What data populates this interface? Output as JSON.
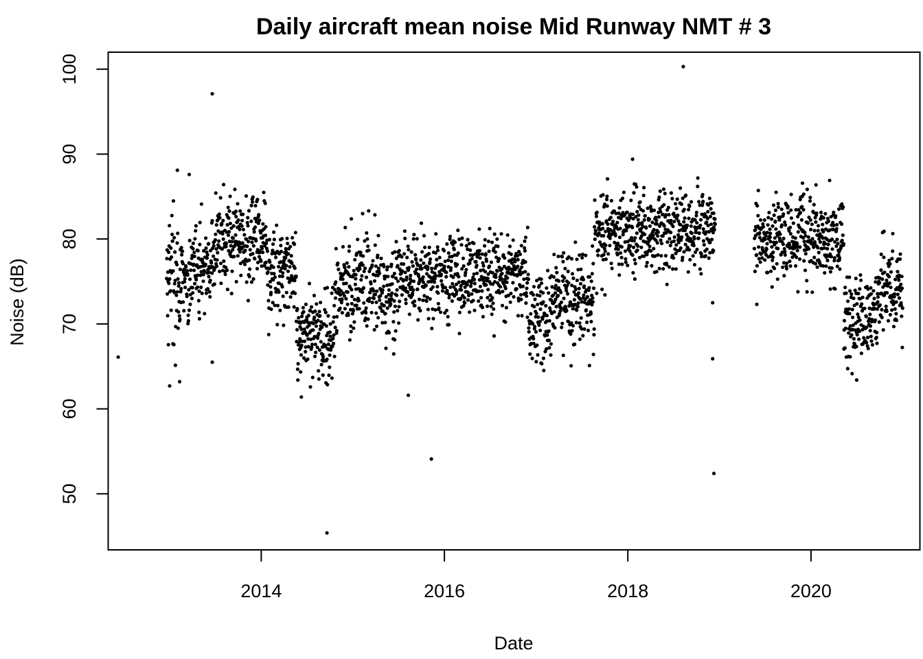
{
  "chart_data": {
    "type": "scatter",
    "title": "Daily aircraft mean noise Mid Runway NMT # 3",
    "xlabel": "Date",
    "ylabel": "Noise (dB)",
    "x_axis_type": "date",
    "xlim": [
      "2012-05-01",
      "2021-03-10"
    ],
    "ylim": [
      43.4,
      102.0
    ],
    "x_ticks": [
      "2014",
      "2016",
      "2018",
      "2020"
    ],
    "y_ticks": [
      "50",
      "60",
      "70",
      "80",
      "90",
      "100"
    ],
    "grid": false,
    "legend": "none",
    "point_color": "#000000",
    "segments": [
      {
        "start": "2012-12-20",
        "end": "2013-03-31",
        "mean": 75,
        "sd": 3.8
      },
      {
        "start": "2013-04-01",
        "end": "2013-06-30",
        "mean": 76.5,
        "sd": 2.6
      },
      {
        "start": "2013-07-01",
        "end": "2014-01-20",
        "mean": 80,
        "sd": 2.5
      },
      {
        "start": "2014-01-21",
        "end": "2014-05-20",
        "mean": 76,
        "sd": 2.4
      },
      {
        "start": "2014-05-21",
        "end": "2014-10-20",
        "mean": 68.5,
        "sd": 2.6
      },
      {
        "start": "2014-10-21",
        "end": "2015-06-30",
        "mean": 74.5,
        "sd": 2.9
      },
      {
        "start": "2015-07-01",
        "end": "2016-12-01",
        "mean": 75.5,
        "sd": 2.3
      },
      {
        "start": "2016-12-02",
        "end": "2017-03-10",
        "mean": 70.5,
        "sd": 2.4
      },
      {
        "start": "2017-03-11",
        "end": "2017-08-20",
        "mean": 73,
        "sd": 2.5
      },
      {
        "start": "2017-08-21",
        "end": "2018-12-15",
        "mean": 81,
        "sd": 2.4
      },
      {
        "start": "2019-05-20",
        "end": "2020-05-10",
        "mean": 80,
        "sd": 2.5
      },
      {
        "start": "2020-05-11",
        "end": "2020-09-20",
        "mean": 71,
        "sd": 2.6
      },
      {
        "start": "2020-09-21",
        "end": "2020-12-31",
        "mean": 73.5,
        "sd": 2.6
      }
    ],
    "outliers": [
      {
        "date": "2012-06-10",
        "value": 66.1
      },
      {
        "date": "2013-06-20",
        "value": 97.1
      },
      {
        "date": "2013-06-20",
        "value": 65.5
      },
      {
        "date": "2014-09-20",
        "value": 45.4
      },
      {
        "date": "2015-11-10",
        "value": 54.1
      },
      {
        "date": "2015-08-10",
        "value": 61.6
      },
      {
        "date": "2014-06-10",
        "value": 61.4
      },
      {
        "date": "2018-08-10",
        "value": 100.3
      },
      {
        "date": "2018-12-10",
        "value": 52.4
      },
      {
        "date": "2018-12-05",
        "value": 65.9
      },
      {
        "date": "2018-12-05",
        "value": 72.5
      },
      {
        "date": "2013-02-01",
        "value": 88.1
      },
      {
        "date": "2013-03-20",
        "value": 87.6
      },
      {
        "date": "2013-01-01",
        "value": 62.7
      },
      {
        "date": "2013-02-10",
        "value": 63.2
      },
      {
        "date": "2017-01-20",
        "value": 65.4
      },
      {
        "date": "2017-08-01",
        "value": 65.1
      },
      {
        "date": "2018-01-20",
        "value": 89.4
      },
      {
        "date": "2020-07-01",
        "value": 63.4
      },
      {
        "date": "2020-03-15",
        "value": 86.9
      }
    ]
  }
}
